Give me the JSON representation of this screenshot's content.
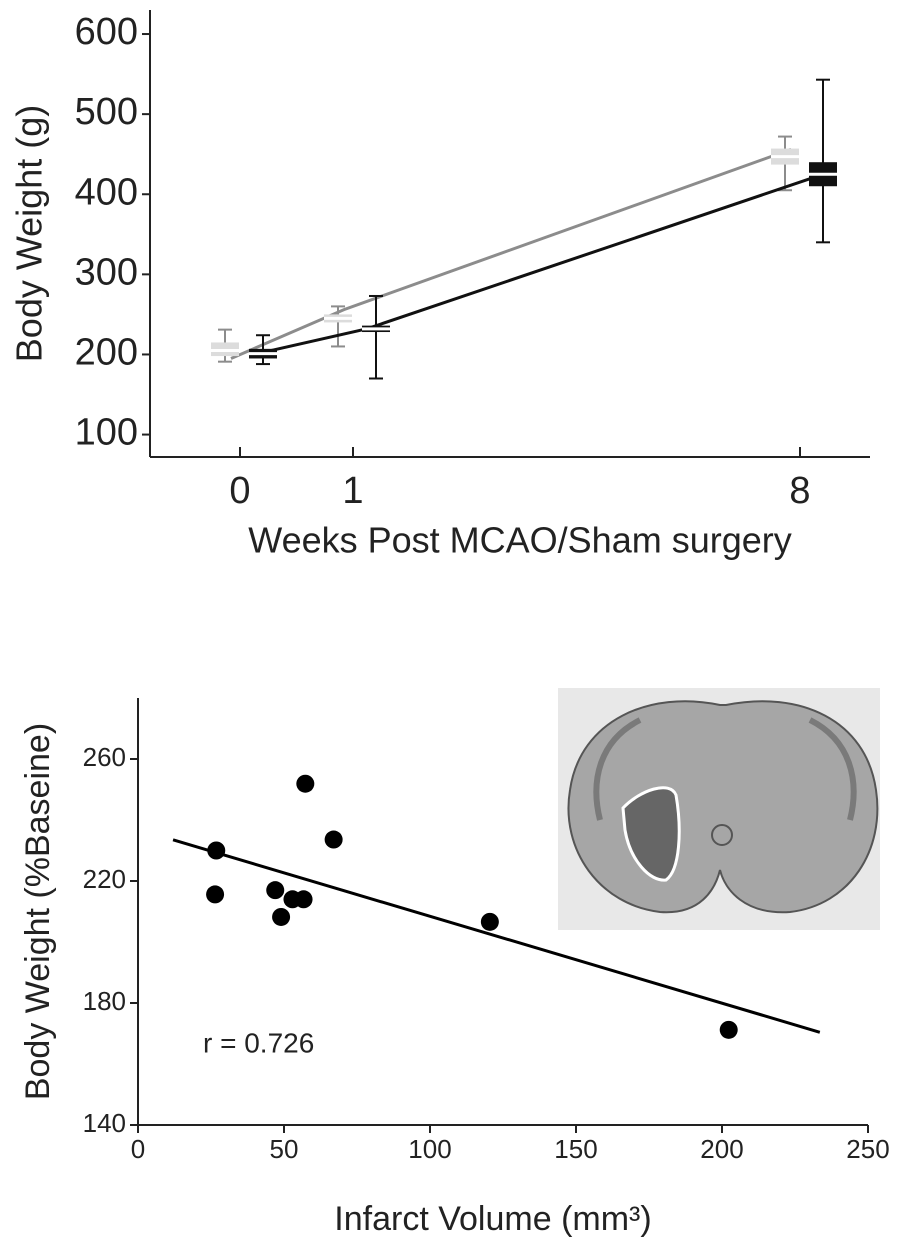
{
  "chart_data": [
    {
      "type": "box",
      "ylabel": "Body Weight (g)",
      "xlabel": "Weeks Post MCAO/Sham surgery",
      "categories": [
        "0",
        "1",
        "8"
      ],
      "ylim": [
        72,
        630
      ],
      "yticks": [
        100,
        200,
        300,
        400,
        500,
        600
      ],
      "series": [
        {
          "color": "#dcdcdc",
          "line_color": "#8c8c8c",
          "low": [
            191,
            210,
            405
          ],
          "q1": [
            198,
            240,
            437
          ],
          "median": [
            205,
            245,
            447
          ],
          "q3": [
            215,
            250,
            457
          ],
          "high": [
            231,
            260,
            472
          ],
          "values": [
            195,
            256,
            456
          ]
        },
        {
          "color": "#111111",
          "line_color": "#111111",
          "low": [
            188,
            170,
            340
          ],
          "q1": [
            195,
            228,
            410
          ],
          "median": [
            201,
            232,
            425
          ],
          "q3": [
            207,
            236,
            440
          ],
          "high": [
            224,
            273,
            543
          ],
          "values": [
            200,
            232,
            421
          ]
        }
      ]
    },
    {
      "type": "scatter",
      "ylabel": "Body Weight (%Baseine)",
      "xlabel": "Infarct Volume (mm³)",
      "annotation": "r = 0.726",
      "x": [
        26.8,
        26.4,
        57.3,
        67,
        47,
        49,
        52.9,
        56.7,
        120.5,
        202.3
      ],
      "values": [
        230,
        215.6,
        251.9,
        233.6,
        217,
        208.2,
        214,
        214,
        206.6,
        171.2
      ],
      "color": "#000000",
      "fit": {
        "x": [
          12,
          233.5
        ],
        "values": [
          233.5,
          170.4
        ]
      },
      "xlim": [
        0,
        250
      ],
      "xticks": [
        0,
        50,
        100,
        150,
        200,
        250
      ],
      "ylim": [
        140,
        280
      ],
      "yticks": [
        140,
        180,
        220,
        260
      ]
    }
  ]
}
